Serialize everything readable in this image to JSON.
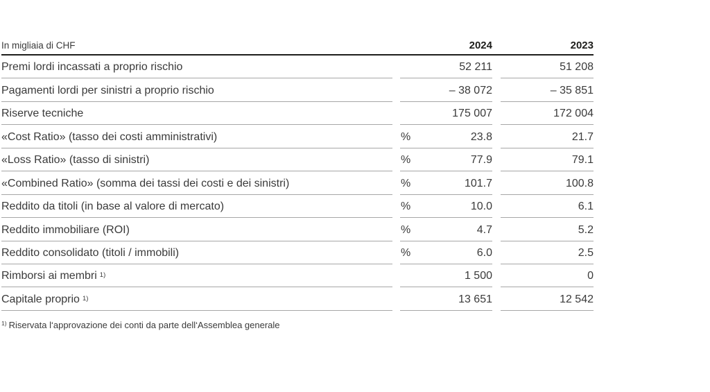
{
  "table": {
    "unit_label": "In migliaia di CHF",
    "columns": {
      "y2024": "2024",
      "y2023": "2023"
    },
    "rows": [
      {
        "label": "Premi lordi incassati a proprio rischio",
        "footnote_mark": "",
        "unit": "",
        "v2024": "52 211",
        "v2023": "51 208"
      },
      {
        "label": "Pagamenti lordi per sinistri a proprio rischio",
        "footnote_mark": "",
        "unit": "",
        "v2024": "– 38 072",
        "v2023": "– 35 851"
      },
      {
        "label": "Riserve tecniche",
        "footnote_mark": "",
        "unit": "",
        "v2024": "175 007",
        "v2023": "172 004"
      },
      {
        "label": "«Cost Ratio» (tasso dei costi amministrativi)",
        "footnote_mark": "",
        "unit": "%",
        "v2024": "23.8",
        "v2023": "21.7"
      },
      {
        "label": "«Loss Ratio» (tasso di sinistri)",
        "footnote_mark": "",
        "unit": "%",
        "v2024": "77.9",
        "v2023": "79.1"
      },
      {
        "label": "«Combined Ratio» (somma dei tassi dei costi e dei sinistri)",
        "footnote_mark": "",
        "unit": "%",
        "v2024": "101.7",
        "v2023": "100.8"
      },
      {
        "label": "Reddito da titoli (in base al valore di mercato)",
        "footnote_mark": "",
        "unit": "%",
        "v2024": "10.0",
        "v2023": "6.1"
      },
      {
        "label": "Reddito immobiliare (ROI)",
        "footnote_mark": "",
        "unit": "%",
        "v2024": "4.7",
        "v2023": "5.2"
      },
      {
        "label": "Reddito consolidato (titoli / immobili)",
        "footnote_mark": "",
        "unit": "%",
        "v2024": "6.0",
        "v2023": "2.5"
      },
      {
        "label": "Rimborsi ai membri",
        "footnote_mark": "1)",
        "unit": "",
        "v2024": "1 500",
        "v2023": "0"
      },
      {
        "label": "Capitale proprio",
        "footnote_mark": "1)",
        "unit": "",
        "v2024": "13 651",
        "v2023": "12 542"
      }
    ],
    "footnote": {
      "mark": "1)",
      "text": "Riservata l‘approvazione dei conti da parte dell‘Assemblea generale"
    }
  },
  "colors": {
    "text": "#3a3a3a",
    "heading": "#1d1d1b",
    "row_rule": "#a6a6a6",
    "header_rule": "#1d1d1b"
  }
}
